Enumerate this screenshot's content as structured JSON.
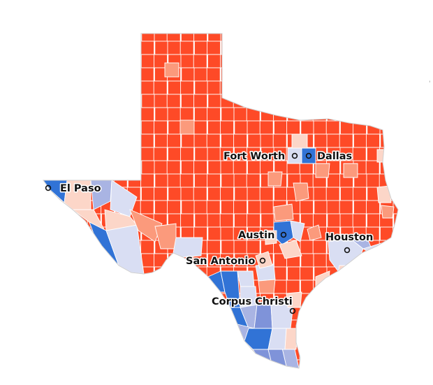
{
  "colors": {
    "strong_red": "#fe4a27",
    "light_red": "#fb9a7c",
    "pale_red": "#fcd6c8",
    "pale_blue": "#d9def3",
    "light_blue": "#a9b4e3",
    "mid_blue": "#7f93d9",
    "strong_blue": "#3173d6"
  },
  "cities": [
    {
      "name": "El Paso",
      "dot_side": "left"
    },
    {
      "name": "Fort Worth",
      "dot_side": "right"
    },
    {
      "name": "Dallas",
      "dot_side": "left"
    },
    {
      "name": "Austin",
      "dot_side": "right"
    },
    {
      "name": "Houston",
      "dot_side": "below"
    },
    {
      "name": "San Antonio",
      "dot_side": "right"
    },
    {
      "name": "Corpus Christi",
      "dot_side": "below"
    }
  ]
}
